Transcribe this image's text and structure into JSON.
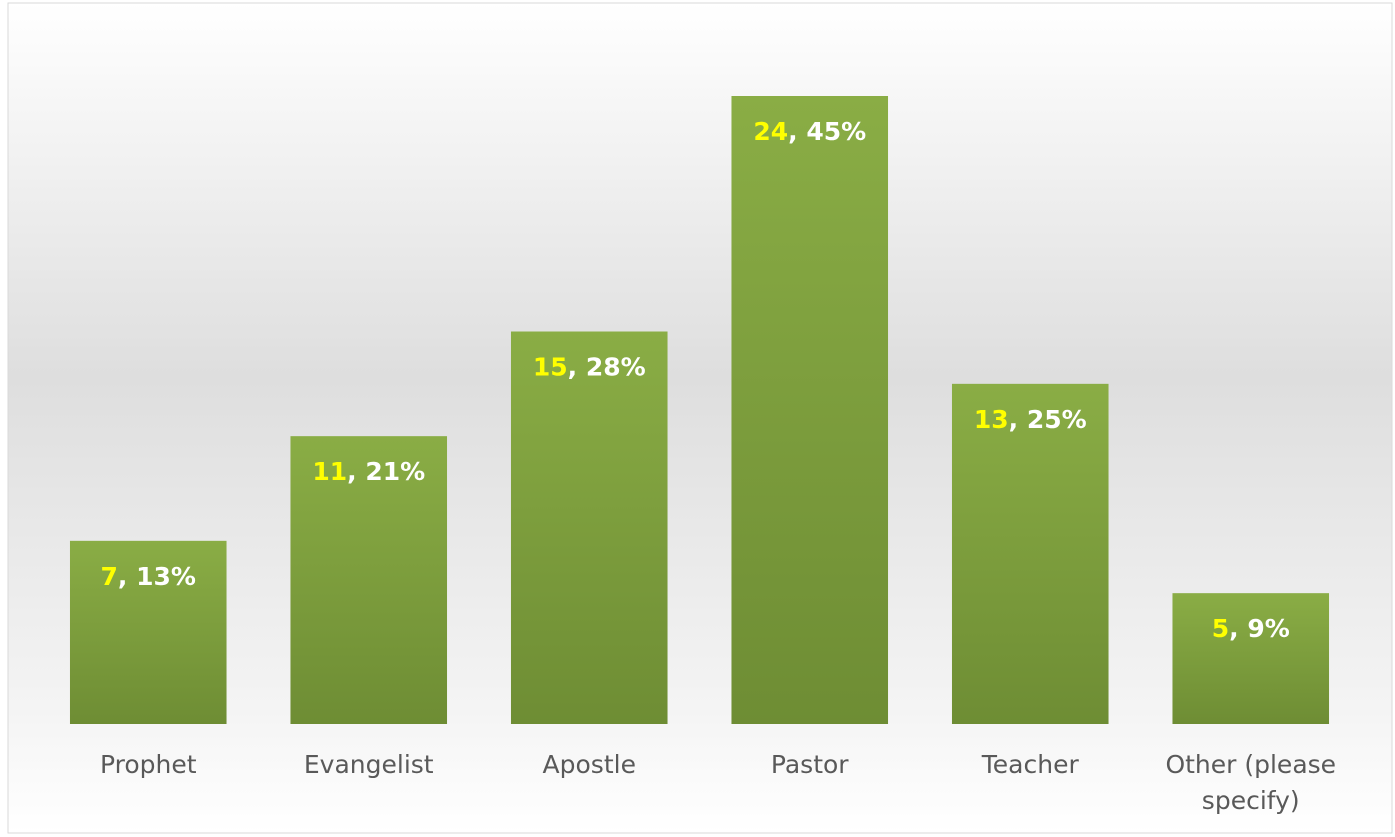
{
  "chart_data": {
    "type": "bar",
    "categories": [
      "Prophet",
      "Evangelist",
      "Apostle",
      "Pastor",
      "Teacher",
      "Other (please specify)"
    ],
    "values": [
      7,
      11,
      15,
      24,
      13,
      5
    ],
    "percentages": [
      13,
      21,
      28,
      45,
      25,
      9
    ],
    "percentage_labels": [
      "13%",
      "21%",
      "28%",
      "45%",
      "25%",
      "9%"
    ],
    "value_label_separator": ", ",
    "color": "#7d9e3b",
    "ylim": [
      0,
      24
    ],
    "grid": false
  }
}
